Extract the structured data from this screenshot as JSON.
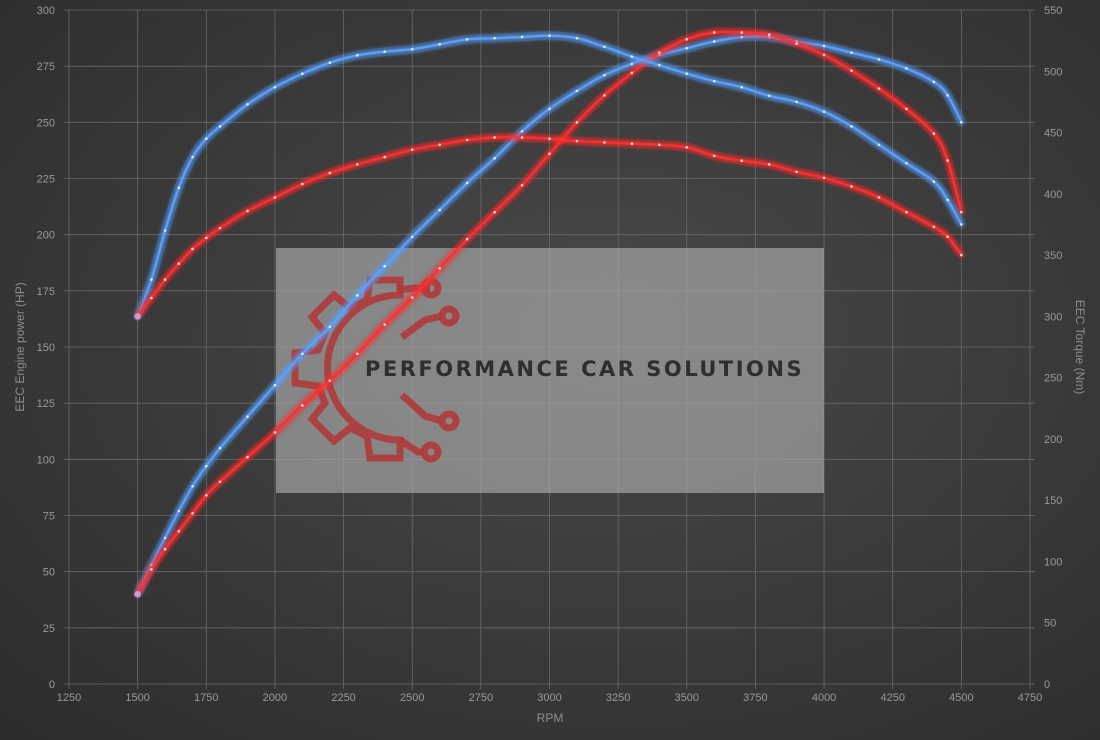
{
  "chart_data": {
    "type": "line",
    "xlabel": "RPM",
    "ylabel_left": "EEC Engine power (HP)",
    "ylabel_right": "EEC Torque (Nm)",
    "xlim": [
      1250,
      4750
    ],
    "ylim_left": [
      0,
      300
    ],
    "ylim_right": [
      0,
      550
    ],
    "x_ticks": [
      1250,
      1500,
      1750,
      2000,
      2250,
      2500,
      2750,
      3000,
      3250,
      3500,
      3750,
      4000,
      4250,
      4500,
      4750
    ],
    "y_left_ticks": [
      0,
      25,
      50,
      75,
      100,
      125,
      150,
      175,
      200,
      225,
      250,
      275,
      300
    ],
    "y_right_ticks": [
      0,
      50,
      100,
      150,
      200,
      250,
      300,
      350,
      400,
      450,
      500,
      550
    ],
    "grid": true,
    "watermark": "PERFORMANCE CAR SOLUTIONS",
    "colors": {
      "tuned": "#5aa0ff",
      "stock": "#ff3030"
    },
    "series": [
      {
        "axis": "left",
        "color": "tuned",
        "x": [
          1500,
          1550,
          1600,
          1650,
          1700,
          1750,
          1800,
          1900,
          2000,
          2100,
          2200,
          2300,
          2400,
          2500,
          2600,
          2700,
          2800,
          2900,
          3000,
          3100,
          3200,
          3300,
          3400,
          3500,
          3600,
          3700,
          3800,
          3900,
          4000,
          4100,
          4200,
          4300,
          4400,
          4450,
          4500
        ],
        "y": [
          40,
          53,
          65,
          77,
          88,
          97,
          105,
          119,
          133,
          147,
          159,
          173,
          186,
          199,
          211,
          223,
          234,
          246,
          256,
          264,
          271,
          276,
          280,
          283,
          286,
          288,
          288,
          286,
          284,
          281,
          278,
          274,
          268,
          262,
          250
        ]
      },
      {
        "axis": "left",
        "color": "stock",
        "x": [
          1500,
          1550,
          1600,
          1650,
          1700,
          1750,
          1800,
          1900,
          2000,
          2100,
          2200,
          2300,
          2400,
          2500,
          2600,
          2700,
          2800,
          2900,
          3000,
          3100,
          3200,
          3300,
          3400,
          3500,
          3600,
          3700,
          3800,
          3900,
          4000,
          4100,
          4200,
          4300,
          4400,
          4450,
          4500
        ],
        "y": [
          40,
          51,
          60,
          68,
          76,
          84,
          90,
          101,
          112,
          124,
          135,
          147,
          160,
          172,
          185,
          198,
          210,
          222,
          236,
          250,
          262,
          272,
          281,
          287,
          290,
          290,
          289,
          285,
          280,
          273,
          265,
          256,
          245,
          233,
          210
        ]
      },
      {
        "axis": "right",
        "color": "tuned",
        "x": [
          1500,
          1550,
          1600,
          1650,
          1700,
          1750,
          1800,
          1900,
          2000,
          2100,
          2200,
          2300,
          2400,
          2500,
          2600,
          2700,
          2800,
          2900,
          3000,
          3100,
          3200,
          3300,
          3400,
          3500,
          3600,
          3700,
          3800,
          3900,
          4000,
          4100,
          4200,
          4300,
          4400,
          4450,
          4500
        ],
        "y": [
          300,
          330,
          370,
          405,
          430,
          445,
          455,
          473,
          487,
          498,
          507,
          513,
          516,
          518,
          522,
          526,
          527,
          528,
          529,
          527,
          520,
          512,
          505,
          498,
          492,
          487,
          480,
          475,
          467,
          455,
          440,
          425,
          410,
          395,
          375
        ]
      },
      {
        "axis": "right",
        "color": "stock",
        "x": [
          1500,
          1550,
          1600,
          1650,
          1700,
          1750,
          1800,
          1900,
          2000,
          2100,
          2200,
          2300,
          2400,
          2500,
          2600,
          2700,
          2800,
          2900,
          3000,
          3100,
          3200,
          3300,
          3400,
          3500,
          3600,
          3700,
          3800,
          3900,
          4000,
          4100,
          4200,
          4300,
          4400,
          4450,
          4500
        ],
        "y": [
          300,
          315,
          330,
          343,
          355,
          364,
          372,
          386,
          397,
          408,
          417,
          424,
          430,
          436,
          440,
          444,
          446,
          446,
          445,
          443,
          442,
          441,
          440,
          438,
          431,
          427,
          424,
          418,
          413,
          406,
          397,
          385,
          373,
          365,
          350
        ]
      }
    ]
  }
}
